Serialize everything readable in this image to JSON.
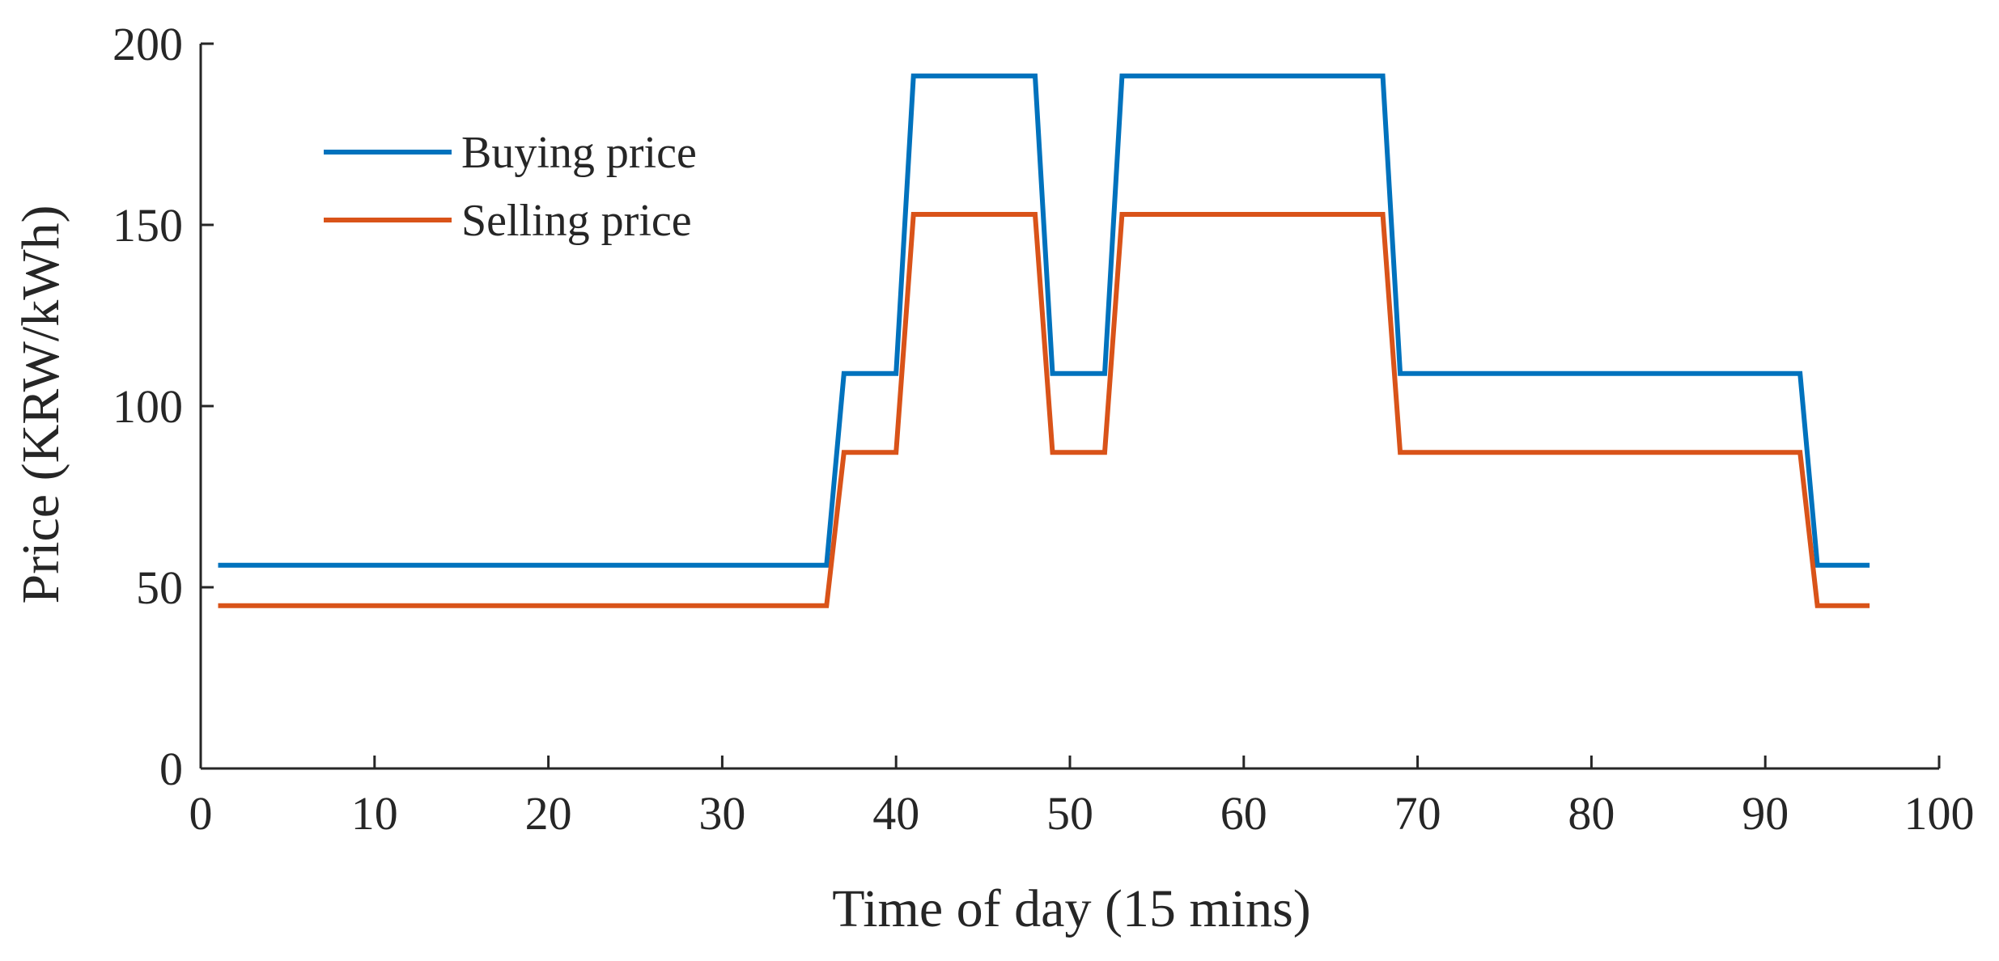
{
  "chart_data": {
    "type": "line",
    "title": "",
    "xlabel": "Time of day (15 mins)",
    "ylabel": "Price (KRW/kWh)",
    "xlim": [
      0,
      100
    ],
    "ylim": [
      0,
      200
    ],
    "xticks": [
      0,
      10,
      20,
      30,
      40,
      50,
      60,
      70,
      80,
      90,
      100
    ],
    "yticks": [
      0,
      50,
      100,
      150,
      200
    ],
    "grid": false,
    "legend_position": "top-left",
    "series": [
      {
        "name": "Buying price",
        "color": "#0072BD",
        "x": [
          1,
          36,
          37,
          40,
          41,
          48,
          49,
          52,
          53,
          68,
          69,
          92,
          93,
          96
        ],
        "y": [
          56.1,
          56.1,
          109,
          109,
          191.1,
          191.1,
          109,
          109,
          191.1,
          191.1,
          109,
          109,
          56.1,
          56.1
        ]
      },
      {
        "name": "Selling price",
        "color": "#D95319",
        "x": [
          1,
          36,
          37,
          40,
          41,
          48,
          49,
          52,
          53,
          68,
          69,
          92,
          93,
          96
        ],
        "y": [
          44.9,
          44.9,
          87.2,
          87.2,
          152.9,
          152.9,
          87.2,
          87.2,
          152.9,
          152.9,
          87.2,
          87.2,
          44.9,
          44.9
        ]
      }
    ]
  }
}
